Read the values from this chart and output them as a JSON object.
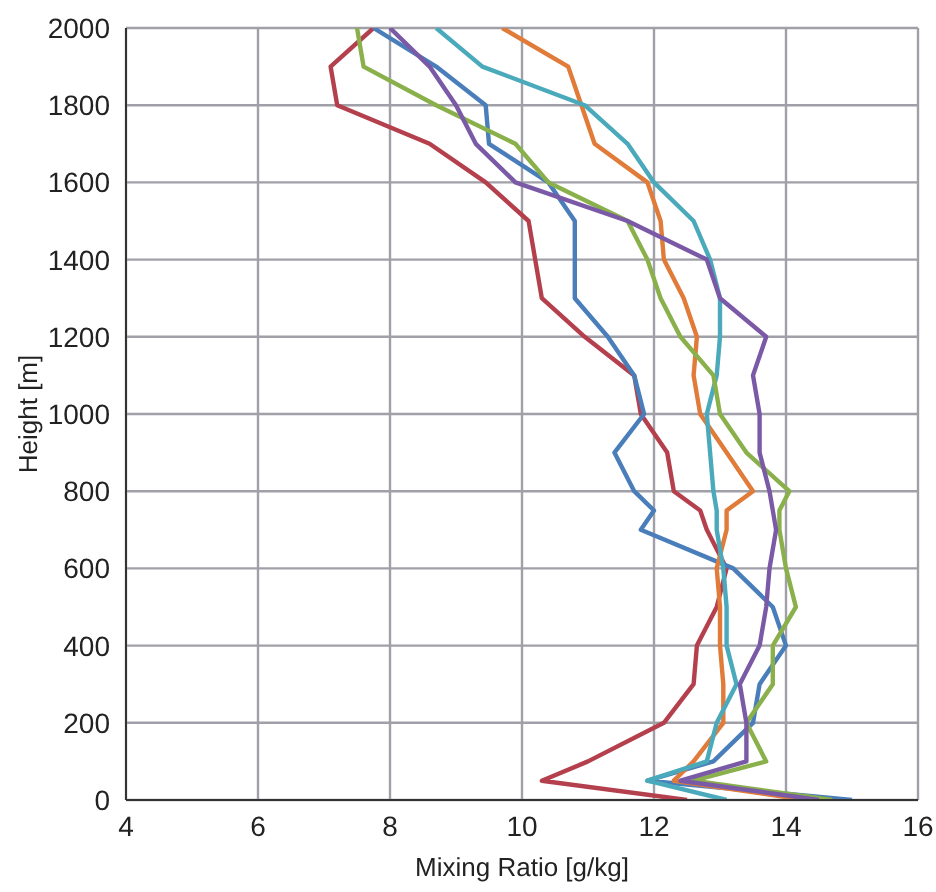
{
  "chart_data": {
    "type": "line",
    "xlabel": "Mixing Ratio [g/kg]",
    "ylabel": "Height [m]",
    "xlim": [
      4,
      16
    ],
    "xticks": [
      4,
      6,
      8,
      10,
      12,
      14,
      16
    ],
    "ylim": [
      0,
      2000
    ],
    "yticks": [
      0,
      200,
      400,
      600,
      800,
      1000,
      1200,
      1400,
      1600,
      1800,
      2000
    ],
    "grid": true,
    "legend": false,
    "marker": "none",
    "line_style": "solid",
    "series": [
      {
        "color": "#b5404d",
        "x": [
          12.5,
          10.3,
          11.0,
          12.15,
          12.6,
          12.65,
          12.95,
          13.1,
          12.8,
          12.7,
          12.3,
          12.2,
          11.8,
          11.7,
          10.95,
          10.3,
          10.2,
          10.1,
          9.45,
          8.6,
          7.2,
          7.1,
          7.75
        ],
        "values": [
          0,
          50,
          100,
          200,
          300,
          400,
          500,
          600,
          700,
          750,
          800,
          900,
          1000,
          1100,
          1200,
          1300,
          1400,
          1500,
          1600,
          1700,
          1800,
          1900,
          2000
        ]
      },
      {
        "color": "#4a7ebb",
        "x": [
          15.0,
          11.9,
          12.9,
          13.5,
          13.6,
          14.0,
          13.8,
          13.2,
          11.8,
          12.0,
          11.7,
          11.4,
          11.85,
          11.7,
          11.3,
          10.8,
          10.8,
          10.8,
          10.4,
          9.5,
          9.45,
          8.7,
          7.75
        ],
        "values": [
          0,
          50,
          100,
          200,
          300,
          400,
          500,
          600,
          700,
          750,
          800,
          900,
          1000,
          1100,
          1200,
          1300,
          1400,
          1500,
          1600,
          1700,
          1800,
          1900,
          2000
        ]
      },
      {
        "color": "#e07b39",
        "x": [
          14.3,
          12.3,
          12.6,
          13.05,
          13.05,
          13.0,
          13.0,
          12.95,
          13.1,
          13.1,
          13.5,
          13.1,
          12.7,
          12.6,
          12.65,
          12.45,
          12.15,
          12.1,
          11.9,
          11.1,
          10.9,
          10.7,
          9.7
        ],
        "values": [
          0,
          50,
          100,
          200,
          300,
          400,
          500,
          600,
          700,
          750,
          800,
          900,
          1000,
          1100,
          1200,
          1300,
          1400,
          1500,
          1600,
          1700,
          1800,
          1900,
          2000
        ]
      },
      {
        "color": "#4aaabb",
        "x": [
          13.1,
          11.9,
          12.8,
          12.95,
          13.25,
          13.1,
          13.1,
          13.05,
          12.95,
          12.95,
          12.9,
          12.85,
          12.8,
          12.95,
          13.0,
          13.0,
          12.85,
          12.6,
          12.0,
          11.6,
          10.95,
          9.4,
          8.7
        ],
        "values": [
          0,
          50,
          100,
          200,
          300,
          400,
          500,
          600,
          700,
          750,
          800,
          900,
          1000,
          1100,
          1200,
          1300,
          1400,
          1500,
          1600,
          1700,
          1800,
          1900,
          2000
        ]
      },
      {
        "color": "#8ab04b",
        "x": [
          14.7,
          12.6,
          13.7,
          13.4,
          13.8,
          13.8,
          14.15,
          14.0,
          13.9,
          13.9,
          14.05,
          13.4,
          13.0,
          12.9,
          12.4,
          12.1,
          11.9,
          11.6,
          10.4,
          9.9,
          8.7,
          7.6,
          7.5
        ],
        "values": [
          0,
          50,
          100,
          200,
          300,
          400,
          500,
          600,
          700,
          750,
          800,
          900,
          1000,
          1100,
          1200,
          1300,
          1400,
          1500,
          1600,
          1700,
          1800,
          1900,
          2000
        ]
      },
      {
        "color": "#7a5aa6",
        "x": [
          14.5,
          12.4,
          13.4,
          13.4,
          13.3,
          13.6,
          13.7,
          13.75,
          13.85,
          13.8,
          13.75,
          13.6,
          13.6,
          13.5,
          13.7,
          13.0,
          12.8,
          11.6,
          9.9,
          9.3,
          9.0,
          8.6,
          8.0
        ],
        "values": [
          0,
          50,
          100,
          200,
          300,
          400,
          500,
          600,
          700,
          750,
          800,
          900,
          1000,
          1100,
          1200,
          1300,
          1400,
          1500,
          1600,
          1700,
          1800,
          1900,
          2000
        ]
      }
    ]
  }
}
